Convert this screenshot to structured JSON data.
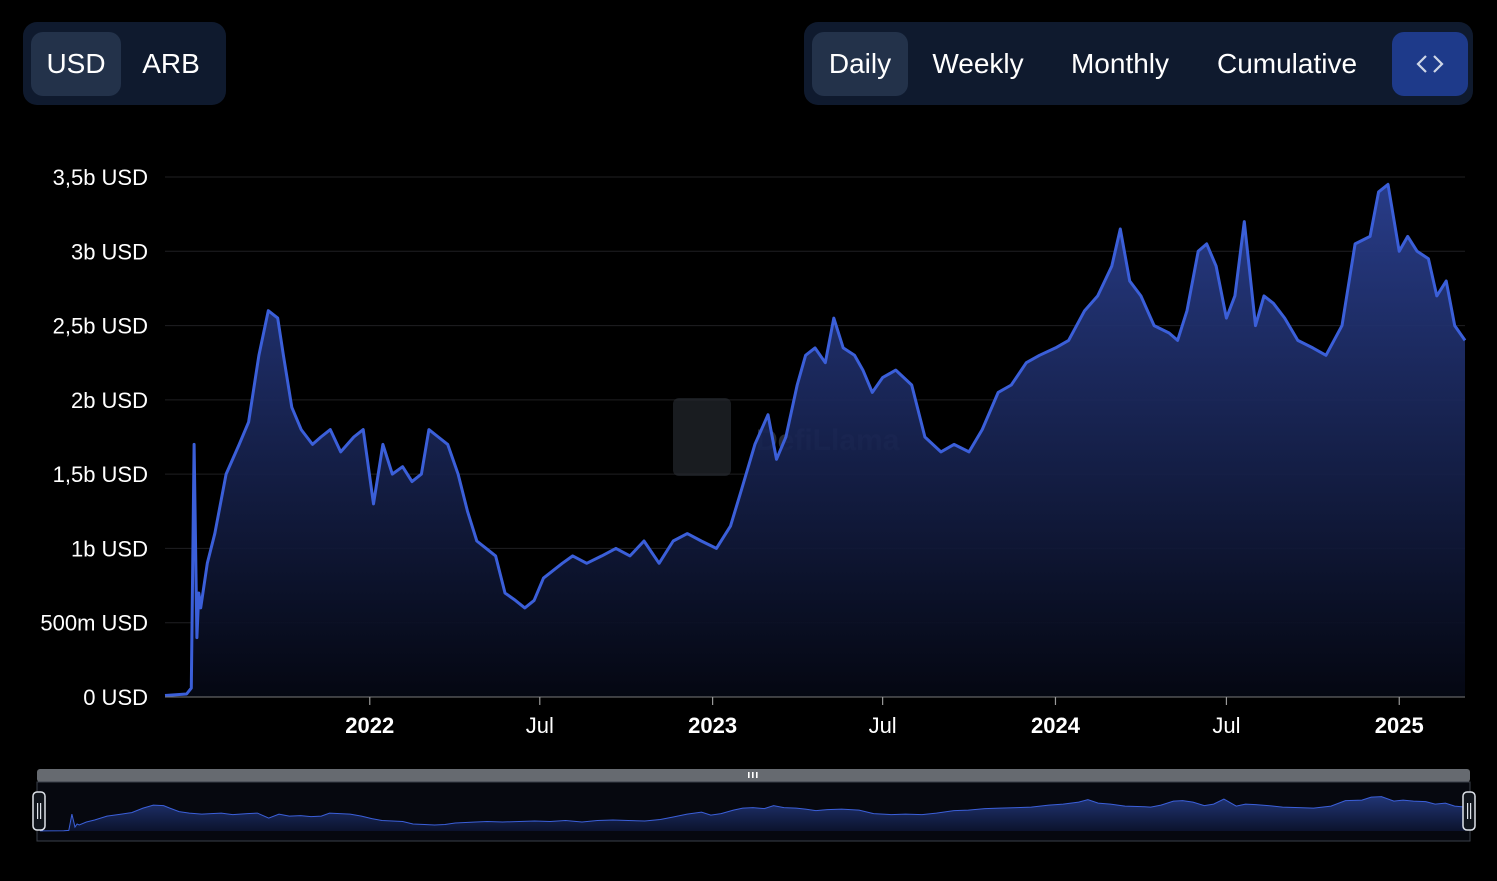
{
  "currency_toggle": {
    "options": [
      "USD",
      "ARB"
    ],
    "selected": "USD"
  },
  "period_toggle": {
    "options": [
      "Daily",
      "Weekly",
      "Monthly",
      "Cumulative"
    ],
    "selected": "Daily",
    "embed_icon": "code-brackets-icon"
  },
  "watermark": "DefiLlama",
  "colors": {
    "line": "#3b5fd9",
    "fill_top": "#2a3f8f",
    "background": "#000000",
    "toggle_bg": "#0f1a2e",
    "toggle_active": "#23324a",
    "embed_bg": "#1e3a8a"
  },
  "chart_data": {
    "type": "area",
    "title": "",
    "xlabel": "",
    "ylabel": "",
    "ylim": [
      0,
      3500000000
    ],
    "y_ticks": [
      "0 USD",
      "500m USD",
      "1b USD",
      "1,5b USD",
      "2b USD",
      "2,5b USD",
      "3b USD",
      "3,5b USD"
    ],
    "x_ticks": [
      {
        "label": "2022",
        "date": "2022-01-01",
        "bold": true
      },
      {
        "label": "Jul",
        "date": "2022-07-01",
        "bold": false
      },
      {
        "label": "2023",
        "date": "2023-01-01",
        "bold": true
      },
      {
        "label": "Jul",
        "date": "2023-07-01",
        "bold": false
      },
      {
        "label": "2024",
        "date": "2024-01-01",
        "bold": true
      },
      {
        "label": "Jul",
        "date": "2024-07-01",
        "bold": false
      },
      {
        "label": "2025",
        "date": "2025-01-01",
        "bold": true
      }
    ],
    "x_range": [
      "2021-05-28",
      "2025-03-12"
    ],
    "grid": true,
    "series": [
      {
        "x": [
          "2021-05-28",
          "2021-06-20",
          "2021-06-25",
          "2021-06-28",
          "2021-07-01",
          "2021-07-03",
          "2021-07-05",
          "2021-07-12",
          "2021-07-20",
          "2021-08-01",
          "2021-08-15",
          "2021-08-25",
          "2021-09-05",
          "2021-09-15",
          "2021-09-25",
          "2021-10-01",
          "2021-10-10",
          "2021-10-20",
          "2021-11-01",
          "2021-11-10",
          "2021-11-20",
          "2021-12-01",
          "2021-12-15",
          "2021-12-25",
          "2022-01-05",
          "2022-01-15",
          "2022-01-25",
          "2022-02-05",
          "2022-02-15",
          "2022-02-25",
          "2022-03-05",
          "2022-03-15",
          "2022-03-25",
          "2022-04-05",
          "2022-04-15",
          "2022-04-25",
          "2022-05-05",
          "2022-05-15",
          "2022-05-25",
          "2022-06-05",
          "2022-06-15",
          "2022-06-25",
          "2022-07-05",
          "2022-07-15",
          "2022-07-25",
          "2022-08-05",
          "2022-08-20",
          "2022-09-05",
          "2022-09-20",
          "2022-10-05",
          "2022-10-20",
          "2022-11-05",
          "2022-11-20",
          "2022-12-05",
          "2022-12-20",
          "2023-01-05",
          "2023-01-20",
          "2023-02-01",
          "2023-02-15",
          "2023-03-01",
          "2023-03-10",
          "2023-03-20",
          "2023-04-01",
          "2023-04-10",
          "2023-04-20",
          "2023-05-01",
          "2023-05-10",
          "2023-05-20",
          "2023-06-01",
          "2023-06-10",
          "2023-06-20",
          "2023-07-01",
          "2023-07-15",
          "2023-08-01",
          "2023-08-15",
          "2023-09-01",
          "2023-09-15",
          "2023-10-01",
          "2023-10-15",
          "2023-11-01",
          "2023-11-15",
          "2023-12-01",
          "2023-12-15",
          "2024-01-01",
          "2024-01-15",
          "2024-02-01",
          "2024-02-15",
          "2024-03-01",
          "2024-03-10",
          "2024-03-20",
          "2024-04-01",
          "2024-04-15",
          "2024-05-01",
          "2024-05-10",
          "2024-05-20",
          "2024-06-01",
          "2024-06-10",
          "2024-06-20",
          "2024-07-01",
          "2024-07-10",
          "2024-07-20",
          "2024-08-01",
          "2024-08-10",
          "2024-08-20",
          "2024-09-01",
          "2024-09-15",
          "2024-10-01",
          "2024-10-15",
          "2024-11-01",
          "2024-11-15",
          "2024-12-01",
          "2024-12-10",
          "2024-12-20",
          "2025-01-01",
          "2025-01-10",
          "2025-01-20",
          "2025-02-01",
          "2025-02-10",
          "2025-02-20",
          "2025-03-01",
          "2025-03-12"
        ],
        "values": [
          10000000,
          20000000,
          60000000,
          1700000000,
          400000000,
          700000000,
          600000000,
          900000000,
          1100000000,
          1500000000,
          1700000000,
          1850000000,
          2300000000,
          2600000000,
          2550000000,
          2300000000,
          1950000000,
          1800000000,
          1700000000,
          1750000000,
          1800000000,
          1650000000,
          1750000000,
          1800000000,
          1300000000,
          1700000000,
          1500000000,
          1550000000,
          1450000000,
          1500000000,
          1800000000,
          1750000000,
          1700000000,
          1500000000,
          1250000000,
          1050000000,
          1000000000,
          950000000,
          700000000,
          650000000,
          600000000,
          650000000,
          800000000,
          850000000,
          900000000,
          950000000,
          900000000,
          950000000,
          1000000000,
          950000000,
          1050000000,
          900000000,
          1050000000,
          1100000000,
          1050000000,
          1000000000,
          1150000000,
          1400000000,
          1700000000,
          1900000000,
          1600000000,
          1750000000,
          2100000000,
          2300000000,
          2350000000,
          2250000000,
          2550000000,
          2350000000,
          2300000000,
          2200000000,
          2050000000,
          2150000000,
          2200000000,
          2100000000,
          1750000000,
          1650000000,
          1700000000,
          1650000000,
          1800000000,
          2050000000,
          2100000000,
          2250000000,
          2300000000,
          2350000000,
          2400000000,
          2600000000,
          2700000000,
          2900000000,
          3150000000,
          2800000000,
          2700000000,
          2500000000,
          2450000000,
          2400000000,
          2600000000,
          3000000000,
          3050000000,
          2900000000,
          2550000000,
          2700000000,
          3200000000,
          2500000000,
          2700000000,
          2650000000,
          2550000000,
          2400000000,
          2350000000,
          2300000000,
          2500000000,
          3050000000,
          3100000000,
          3400000000,
          3450000000,
          3000000000,
          3100000000,
          3000000000,
          2950000000,
          2700000000,
          2800000000,
          2500000000,
          2400000000
        ]
      }
    ]
  }
}
